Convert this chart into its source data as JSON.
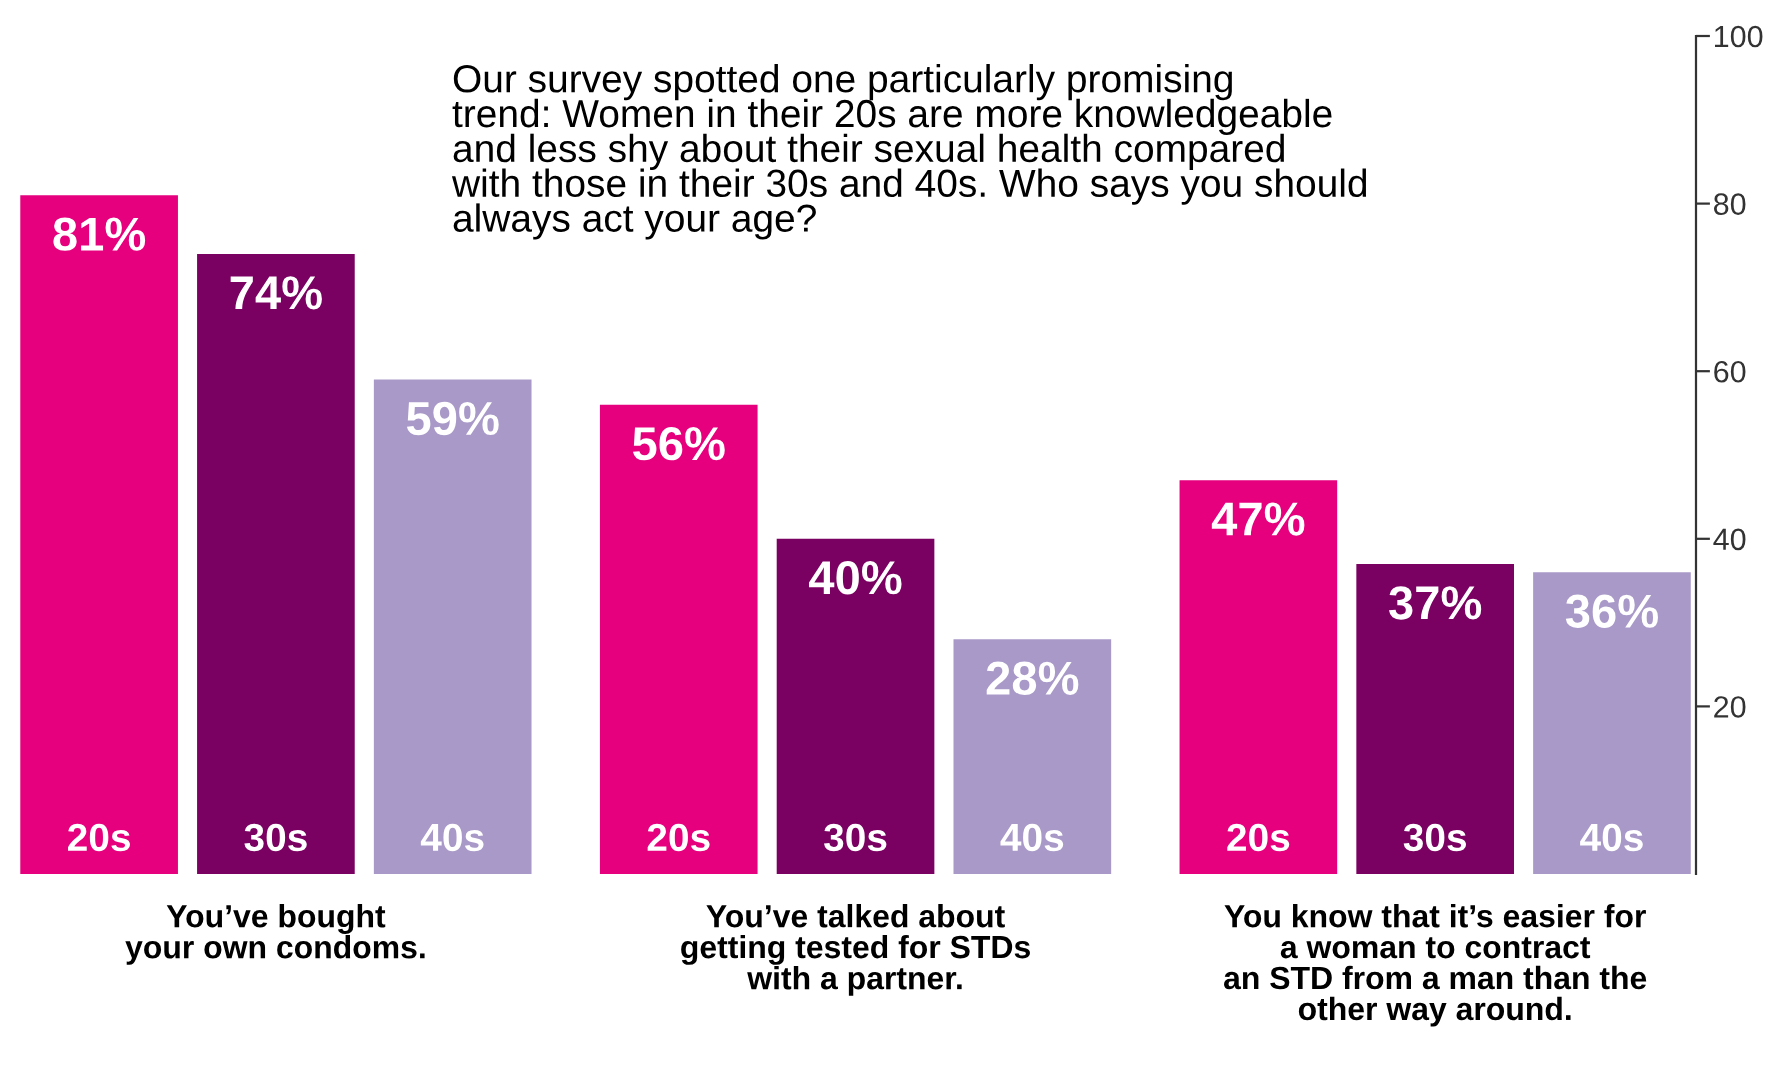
{
  "chart_data": {
    "type": "bar",
    "categories": [
      "You’ve bought\nyour own condoms.",
      "You’ve talked about\ngetting tested for STDs\nwith a partner.",
      "You know that it’s easier for\na woman to contract\nan STD from a man than the\nother way around."
    ],
    "series": [
      {
        "name": "20s",
        "color": "#e6007e",
        "values": [
          81,
          56,
          47
        ],
        "value_labels": [
          "81%",
          "56%",
          "47%"
        ]
      },
      {
        "name": "30s",
        "color": "#7a0061",
        "values": [
          74,
          40,
          37
        ],
        "value_labels": [
          "74%",
          "40%",
          "37%"
        ]
      },
      {
        "name": "40s",
        "color": "#a899c8",
        "values": [
          59,
          28,
          36
        ],
        "value_labels": [
          "59%",
          "28%",
          "36%"
        ]
      }
    ],
    "ylim": [
      0,
      100
    ],
    "yticks": [
      20,
      40,
      60,
      80,
      100
    ],
    "grid": false,
    "legend": false,
    "annotations": [
      "Our survey spotted one particularly promising\ntrend: Women in their 20s are more knowledgeable\nand less shy about their sexual health compared\nwith those in their 30s and 40s. Who says you should\nalways act your age?"
    ]
  }
}
